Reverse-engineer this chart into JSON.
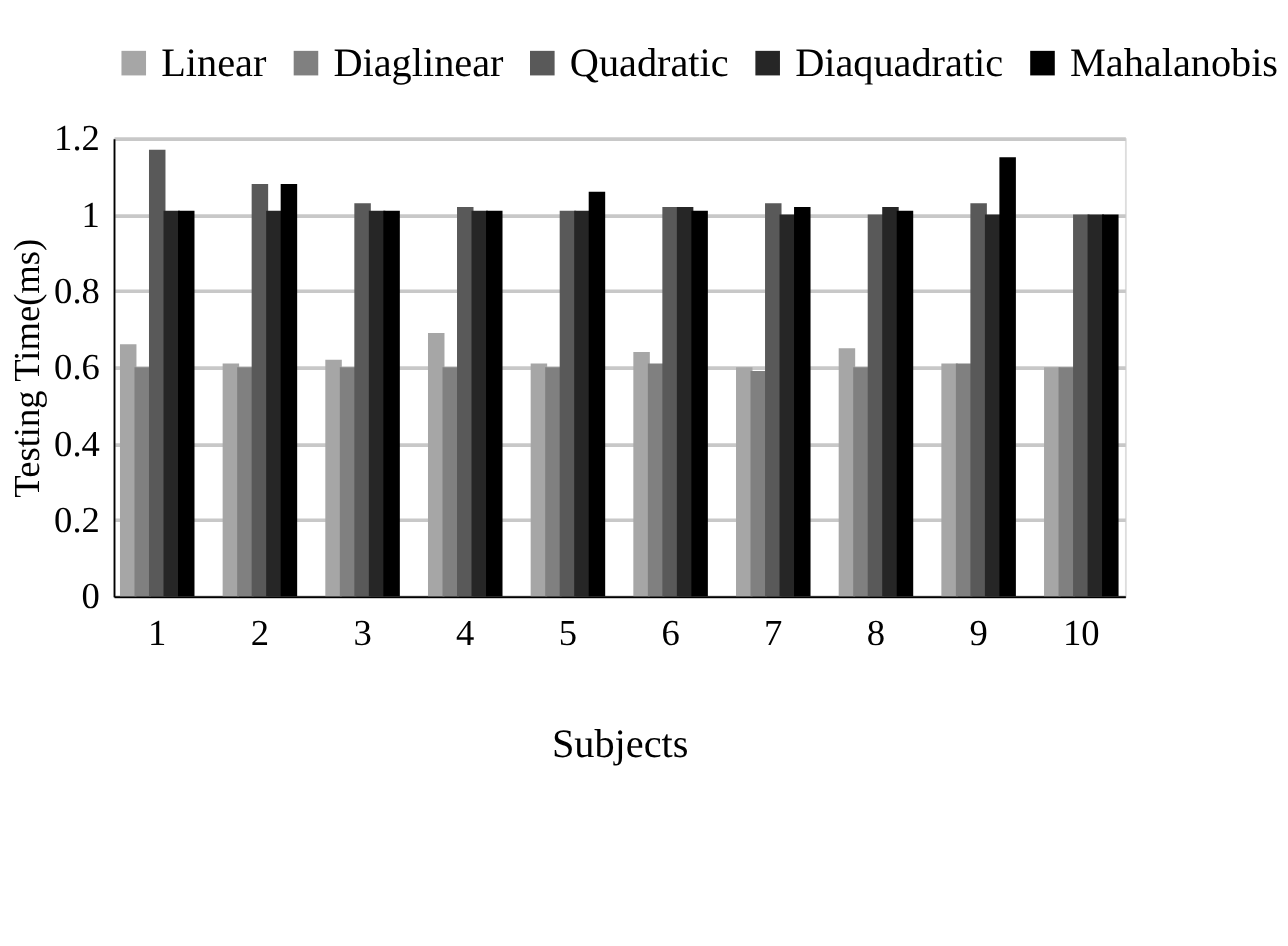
{
  "chart_data": {
    "type": "bar",
    "xlabel": "Subjects",
    "ylabel": "Testing Time(ms)",
    "categories": [
      "1",
      "2",
      "3",
      "4",
      "5",
      "6",
      "7",
      "8",
      "9",
      "10"
    ],
    "series": [
      {
        "name": "Linear",
        "color": "#a6a6a6",
        "values": [
          0.66,
          0.61,
          0.62,
          0.69,
          0.61,
          0.64,
          0.6,
          0.65,
          0.61,
          0.6
        ]
      },
      {
        "name": "Diaglinear",
        "color": "#808080",
        "values": [
          0.6,
          0.6,
          0.6,
          0.6,
          0.6,
          0.61,
          0.59,
          0.6,
          0.61,
          0.6
        ]
      },
      {
        "name": "Quadratic",
        "color": "#595959",
        "values": [
          1.17,
          1.08,
          1.03,
          1.02,
          1.01,
          1.02,
          1.03,
          1.0,
          1.03,
          1.0
        ]
      },
      {
        "name": "Diaquadratic",
        "color": "#262626",
        "values": [
          1.01,
          1.01,
          1.01,
          1.01,
          1.01,
          1.02,
          1.0,
          1.02,
          1.0,
          1.0
        ]
      },
      {
        "name": "Mahalanobis",
        "color": "#000000",
        "values": [
          1.01,
          1.08,
          1.01,
          1.01,
          1.06,
          1.01,
          1.02,
          1.01,
          1.15,
          1.0
        ]
      }
    ],
    "ylim": [
      0,
      1.2
    ],
    "yticks": [
      0,
      0.2,
      0.4,
      0.6,
      0.8,
      1,
      1.2
    ],
    "grid": "y",
    "legend": "top"
  }
}
